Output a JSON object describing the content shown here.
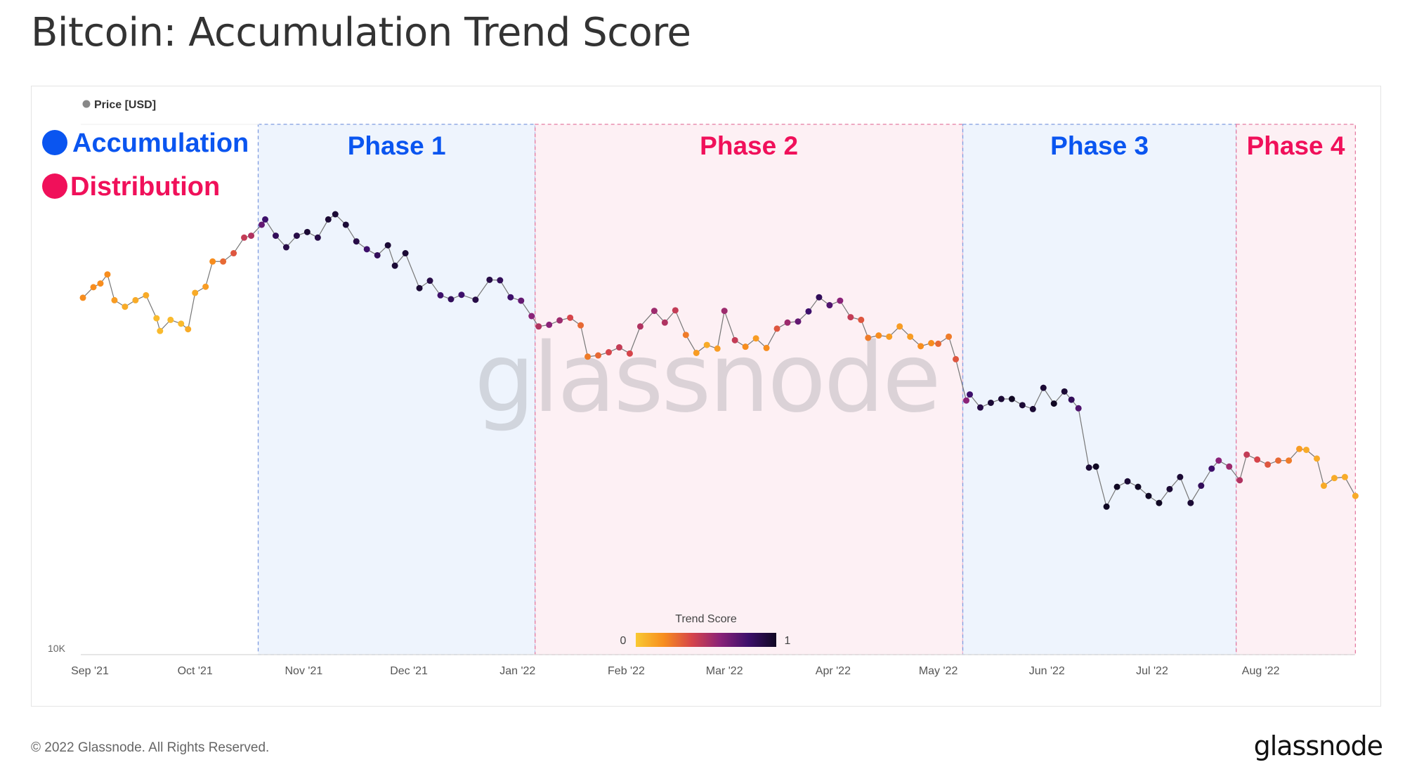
{
  "title": "Bitcoin: Accumulation Trend Score",
  "footer": "© 2022 Glassnode. All Rights Reserved.",
  "brand": "glassnode",
  "chart_data": {
    "type": "scatter",
    "title": "Bitcoin: Accumulation Trend Score",
    "series_name": "Price [USD]",
    "yscale": "log",
    "ylim": [
      10000,
      100000
    ],
    "ytick_labels": [
      "10K"
    ],
    "xlim": [
      "2021-08-30",
      "2022-08-28"
    ],
    "xtick_labels": [
      {
        "date": "2021-09-01",
        "label": "Sep '21"
      },
      {
        "date": "2021-10-01",
        "label": "Oct '21"
      },
      {
        "date": "2021-11-01",
        "label": "Nov '21"
      },
      {
        "date": "2021-12-01",
        "label": "Dec '21"
      },
      {
        "date": "2022-01-01",
        "label": "Jan '22"
      },
      {
        "date": "2022-02-01",
        "label": "Feb '22"
      },
      {
        "date": "2022-03-01",
        "label": "Mar '22"
      },
      {
        "date": "2022-04-01",
        "label": "Apr '22"
      },
      {
        "date": "2022-05-01",
        "label": "May '22"
      },
      {
        "date": "2022-06-01",
        "label": "Jun '22"
      },
      {
        "date": "2022-07-01",
        "label": "Jul '22"
      },
      {
        "date": "2022-08-01",
        "label": "Aug '22"
      }
    ],
    "legend": {
      "accumulation": {
        "label": "Accumulation",
        "color": "#0a55f0"
      },
      "distribution": {
        "label": "Distribution",
        "color": "#f0105a"
      }
    },
    "colorbar": {
      "title": "Trend Score",
      "min_label": "0",
      "max_label": "1",
      "stops": [
        "#f9c932",
        "#f78d1e",
        "#d6444a",
        "#8a2278",
        "#3d0f6b",
        "#100823"
      ]
    },
    "phases": [
      {
        "label": "Phase 1",
        "type": "accumulation",
        "start": "2021-10-19",
        "end": "2022-01-06"
      },
      {
        "label": "Phase 2",
        "type": "distribution",
        "start": "2022-01-06",
        "end": "2022-05-08"
      },
      {
        "label": "Phase 3",
        "type": "accumulation",
        "start": "2022-05-08",
        "end": "2022-07-25"
      },
      {
        "label": "Phase 4",
        "type": "distribution",
        "start": "2022-07-25",
        "end": "2022-08-28"
      }
    ],
    "watermark": "glassnode",
    "points": [
      [
        "2021-08-30",
        47000,
        0.2
      ],
      [
        "2021-09-02",
        49200,
        0.2
      ],
      [
        "2021-09-04",
        50000,
        0.2
      ],
      [
        "2021-09-06",
        52000,
        0.2
      ],
      [
        "2021-09-08",
        46500,
        0.15
      ],
      [
        "2021-09-11",
        45200,
        0.1
      ],
      [
        "2021-09-14",
        46500,
        0.1
      ],
      [
        "2021-09-17",
        47500,
        0.1
      ],
      [
        "2021-09-20",
        43000,
        0.05
      ],
      [
        "2021-09-21",
        40700,
        0.05
      ],
      [
        "2021-09-24",
        42700,
        0.05
      ],
      [
        "2021-09-27",
        42000,
        0.05
      ],
      [
        "2021-09-29",
        41000,
        0.1
      ],
      [
        "2021-10-01",
        48000,
        0.1
      ],
      [
        "2021-10-04",
        49300,
        0.15
      ],
      [
        "2021-10-06",
        55000,
        0.2
      ],
      [
        "2021-10-09",
        55000,
        0.3
      ],
      [
        "2021-10-12",
        57000,
        0.35
      ],
      [
        "2021-10-15",
        61000,
        0.45
      ],
      [
        "2021-10-17",
        61500,
        0.5
      ],
      [
        "2021-10-20",
        64500,
        0.7
      ],
      [
        "2021-10-21",
        66000,
        0.8
      ],
      [
        "2021-10-24",
        61500,
        0.85
      ],
      [
        "2021-10-27",
        58500,
        0.9
      ],
      [
        "2021-10-30",
        61500,
        0.9
      ],
      [
        "2021-11-02",
        62500,
        0.95
      ],
      [
        "2021-11-05",
        61000,
        0.9
      ],
      [
        "2021-11-08",
        66000,
        0.95
      ],
      [
        "2021-11-10",
        67500,
        0.95
      ],
      [
        "2021-11-13",
        64500,
        0.95
      ],
      [
        "2021-11-16",
        60000,
        0.9
      ],
      [
        "2021-11-19",
        58000,
        0.8
      ],
      [
        "2021-11-22",
        56500,
        0.85
      ],
      [
        "2021-11-25",
        59000,
        0.95
      ],
      [
        "2021-11-27",
        54000,
        0.95
      ],
      [
        "2021-11-30",
        57000,
        0.95
      ],
      [
        "2021-12-04",
        49000,
        0.95
      ],
      [
        "2021-12-07",
        50600,
        0.9
      ],
      [
        "2021-12-10",
        47500,
        0.8
      ],
      [
        "2021-12-13",
        46700,
        0.85
      ],
      [
        "2021-12-16",
        47600,
        0.8
      ],
      [
        "2021-12-20",
        46600,
        0.9
      ],
      [
        "2021-12-24",
        50800,
        0.9
      ],
      [
        "2021-12-27",
        50700,
        0.85
      ],
      [
        "2021-12-30",
        47100,
        0.8
      ],
      [
        "2022-01-02",
        46400,
        0.7
      ],
      [
        "2022-01-05",
        43400,
        0.6
      ],
      [
        "2022-01-07",
        41500,
        0.5
      ],
      [
        "2022-01-10",
        41800,
        0.6
      ],
      [
        "2022-01-13",
        42600,
        0.55
      ],
      [
        "2022-01-16",
        43100,
        0.4
      ],
      [
        "2022-01-19",
        41700,
        0.3
      ],
      [
        "2022-01-21",
        36400,
        0.25
      ],
      [
        "2022-01-24",
        36600,
        0.3
      ],
      [
        "2022-01-27",
        37100,
        0.4
      ],
      [
        "2022-01-30",
        37900,
        0.45
      ],
      [
        "2022-02-02",
        36900,
        0.4
      ],
      [
        "2022-02-05",
        41500,
        0.5
      ],
      [
        "2022-02-09",
        44400,
        0.55
      ],
      [
        "2022-02-12",
        42200,
        0.5
      ],
      [
        "2022-02-15",
        44500,
        0.45
      ],
      [
        "2022-02-18",
        40000,
        0.25
      ],
      [
        "2022-02-21",
        37000,
        0.15
      ],
      [
        "2022-02-24",
        38300,
        0.1
      ],
      [
        "2022-02-27",
        37700,
        0.15
      ],
      [
        "2022-03-01",
        44400,
        0.55
      ],
      [
        "2022-03-04",
        39100,
        0.45
      ],
      [
        "2022-03-07",
        38000,
        0.2
      ],
      [
        "2022-03-10",
        39400,
        0.15
      ],
      [
        "2022-03-13",
        37800,
        0.2
      ],
      [
        "2022-03-16",
        41100,
        0.35
      ],
      [
        "2022-03-19",
        42200,
        0.55
      ],
      [
        "2022-03-22",
        42400,
        0.7
      ],
      [
        "2022-03-25",
        44300,
        0.8
      ],
      [
        "2022-03-28",
        47100,
        0.85
      ],
      [
        "2022-03-31",
        45500,
        0.75
      ],
      [
        "2022-04-03",
        46400,
        0.6
      ],
      [
        "2022-04-06",
        43200,
        0.45
      ],
      [
        "2022-04-09",
        42700,
        0.35
      ],
      [
        "2022-04-11",
        39500,
        0.25
      ],
      [
        "2022-04-14",
        39900,
        0.2
      ],
      [
        "2022-04-17",
        39700,
        0.15
      ],
      [
        "2022-04-20",
        41500,
        0.15
      ],
      [
        "2022-04-23",
        39700,
        0.15
      ],
      [
        "2022-04-26",
        38100,
        0.2
      ],
      [
        "2022-04-29",
        38600,
        0.2
      ],
      [
        "2022-05-01",
        38500,
        0.3
      ],
      [
        "2022-05-04",
        39700,
        0.25
      ],
      [
        "2022-05-06",
        36000,
        0.35
      ],
      [
        "2022-05-09",
        30100,
        0.6
      ],
      [
        "2022-05-10",
        30900,
        0.8
      ],
      [
        "2022-05-13",
        29200,
        0.9
      ],
      [
        "2022-05-16",
        29800,
        0.95
      ],
      [
        "2022-05-19",
        30300,
        0.95
      ],
      [
        "2022-05-22",
        30300,
        1.0
      ],
      [
        "2022-05-25",
        29500,
        0.95
      ],
      [
        "2022-05-28",
        29000,
        0.95
      ],
      [
        "2022-05-31",
        31800,
        0.95
      ],
      [
        "2022-06-03",
        29700,
        1.0
      ],
      [
        "2022-06-06",
        31300,
        0.95
      ],
      [
        "2022-06-08",
        30200,
        0.85
      ],
      [
        "2022-06-10",
        29100,
        0.75
      ],
      [
        "2022-06-13",
        22500,
        0.95
      ],
      [
        "2022-06-15",
        22600,
        1.0
      ],
      [
        "2022-06-18",
        19000,
        1.0
      ],
      [
        "2022-06-21",
        20700,
        1.0
      ],
      [
        "2022-06-24",
        21200,
        0.95
      ],
      [
        "2022-06-27",
        20700,
        1.0
      ],
      [
        "2022-06-30",
        19900,
        1.0
      ],
      [
        "2022-07-03",
        19300,
        1.0
      ],
      [
        "2022-07-06",
        20500,
        0.95
      ],
      [
        "2022-07-09",
        21600,
        0.95
      ],
      [
        "2022-07-12",
        19300,
        0.95
      ],
      [
        "2022-07-15",
        20800,
        0.85
      ],
      [
        "2022-07-18",
        22400,
        0.8
      ],
      [
        "2022-07-20",
        23200,
        0.6
      ],
      [
        "2022-07-23",
        22600,
        0.55
      ],
      [
        "2022-07-26",
        21300,
        0.5
      ],
      [
        "2022-07-28",
        23800,
        0.45
      ],
      [
        "2022-07-31",
        23300,
        0.4
      ],
      [
        "2022-08-03",
        22800,
        0.35
      ],
      [
        "2022-08-06",
        23200,
        0.3
      ],
      [
        "2022-08-09",
        23200,
        0.25
      ],
      [
        "2022-08-12",
        24400,
        0.15
      ],
      [
        "2022-08-14",
        24300,
        0.1
      ],
      [
        "2022-08-17",
        23400,
        0.1
      ],
      [
        "2022-08-19",
        20800,
        0.1
      ],
      [
        "2022-08-22",
        21500,
        0.1
      ],
      [
        "2022-08-25",
        21600,
        0.1
      ],
      [
        "2022-08-28",
        19900,
        0.1
      ]
    ]
  }
}
